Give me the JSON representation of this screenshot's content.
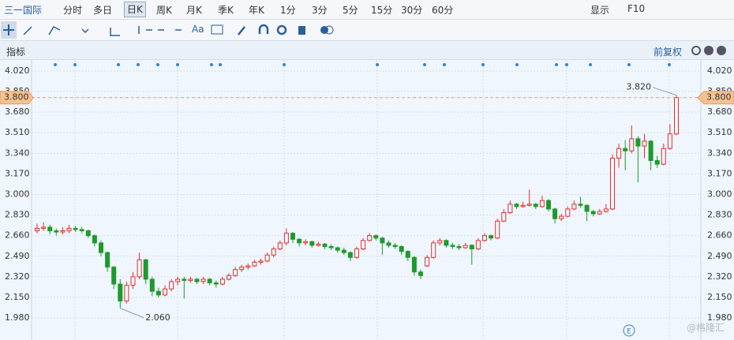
{
  "toolbar": {
    "tabs": [
      "三一国际",
      "分时",
      "多日",
      "日K",
      "周K",
      "月K",
      "季K",
      "年K",
      "1分",
      "3分",
      "5分",
      "15分",
      "30分",
      "60分"
    ],
    "right": [
      "显示",
      "F10"
    ],
    "font_button": "Aa"
  },
  "indicator_bar": {
    "label": "指标",
    "adjust": "前复权"
  },
  "watermark": "@格隆汇",
  "event_marker": "E",
  "chart_data": {
    "type": "candlestick",
    "up_color": "#e0302f",
    "down_color": "#1d9a2e",
    "grid": true,
    "ylim": [
      1.837,
      4.085
    ],
    "yticks": [
      {
        "value": 1.98,
        "label": "1.980"
      },
      {
        "value": 2.15,
        "label": "2.150"
      },
      {
        "value": 2.32,
        "label": "2.320"
      },
      {
        "value": 2.49,
        "label": "2.490"
      },
      {
        "value": 2.66,
        "label": "2.660"
      },
      {
        "value": 2.83,
        "label": "2.830"
      },
      {
        "value": 3.0,
        "label": "3.000"
      },
      {
        "value": 3.17,
        "label": "3.170"
      },
      {
        "value": 3.34,
        "label": "3.340"
      },
      {
        "value": 3.51,
        "label": "3.510"
      },
      {
        "value": 3.68,
        "label": "3.680"
      },
      {
        "value": 3.85,
        "label": "3.850"
      },
      {
        "value": 4.02,
        "label": "4.020"
      }
    ],
    "last_price": {
      "value": 3.8,
      "label": "3.800"
    },
    "high_label": {
      "value": 3.82,
      "label": "3.820"
    },
    "low_label": {
      "value": 2.06,
      "label": "2.060"
    },
    "candles": [
      [
        2.7,
        2.76,
        2.68,
        2.72
      ],
      [
        2.72,
        2.77,
        2.7,
        2.73
      ],
      [
        2.73,
        2.75,
        2.67,
        2.7
      ],
      [
        2.7,
        2.72,
        2.66,
        2.69
      ],
      [
        2.69,
        2.73,
        2.67,
        2.7
      ],
      [
        2.7,
        2.75,
        2.68,
        2.72
      ],
      [
        2.72,
        2.74,
        2.69,
        2.71
      ],
      [
        2.71,
        2.73,
        2.68,
        2.7
      ],
      [
        2.7,
        2.71,
        2.64,
        2.66
      ],
      [
        2.66,
        2.67,
        2.57,
        2.6
      ],
      [
        2.6,
        2.62,
        2.49,
        2.52
      ],
      [
        2.52,
        2.53,
        2.36,
        2.4
      ],
      [
        2.4,
        2.41,
        2.22,
        2.26
      ],
      [
        2.26,
        2.3,
        2.06,
        2.12
      ],
      [
        2.12,
        2.28,
        2.1,
        2.25
      ],
      [
        2.25,
        2.36,
        2.22,
        2.32
      ],
      [
        2.32,
        2.52,
        2.3,
        2.46
      ],
      [
        2.46,
        2.47,
        2.26,
        2.3
      ],
      [
        2.3,
        2.32,
        2.16,
        2.2
      ],
      [
        2.2,
        2.23,
        2.15,
        2.17
      ],
      [
        2.17,
        2.25,
        2.16,
        2.22
      ],
      [
        2.22,
        2.3,
        2.2,
        2.28
      ],
      [
        2.28,
        2.32,
        2.25,
        2.3
      ],
      [
        2.3,
        2.32,
        2.14,
        2.29
      ],
      [
        2.29,
        2.32,
        2.27,
        2.3
      ],
      [
        2.3,
        2.31,
        2.26,
        2.28
      ],
      [
        2.28,
        2.32,
        2.26,
        2.3
      ],
      [
        2.3,
        2.31,
        2.25,
        2.27
      ],
      [
        2.27,
        2.29,
        2.23,
        2.26
      ],
      [
        2.26,
        2.32,
        2.25,
        2.3
      ],
      [
        2.3,
        2.35,
        2.29,
        2.33
      ],
      [
        2.33,
        2.4,
        2.32,
        2.38
      ],
      [
        2.38,
        2.42,
        2.36,
        2.4
      ],
      [
        2.4,
        2.43,
        2.38,
        2.41
      ],
      [
        2.41,
        2.46,
        2.4,
        2.44
      ],
      [
        2.44,
        2.47,
        2.42,
        2.45
      ],
      [
        2.45,
        2.52,
        2.44,
        2.5
      ],
      [
        2.5,
        2.57,
        2.48,
        2.55
      ],
      [
        2.55,
        2.62,
        2.54,
        2.6
      ],
      [
        2.6,
        2.72,
        2.58,
        2.68
      ],
      [
        2.68,
        2.69,
        2.6,
        2.63
      ],
      [
        2.63,
        2.64,
        2.57,
        2.6
      ],
      [
        2.6,
        2.63,
        2.58,
        2.61
      ],
      [
        2.61,
        2.62,
        2.56,
        2.58
      ],
      [
        2.58,
        2.61,
        2.57,
        2.59
      ],
      [
        2.59,
        2.6,
        2.55,
        2.57
      ],
      [
        2.57,
        2.59,
        2.54,
        2.56
      ],
      [
        2.56,
        2.57,
        2.52,
        2.54
      ],
      [
        2.54,
        2.56,
        2.5,
        2.52
      ],
      [
        2.52,
        2.53,
        2.45,
        2.48
      ],
      [
        2.48,
        2.57,
        2.47,
        2.55
      ],
      [
        2.55,
        2.64,
        2.54,
        2.62
      ],
      [
        2.62,
        2.68,
        2.61,
        2.66
      ],
      [
        2.66,
        2.67,
        2.62,
        2.64
      ],
      [
        2.64,
        2.65,
        2.5,
        2.6
      ],
      [
        2.6,
        2.62,
        2.56,
        2.58
      ],
      [
        2.58,
        2.6,
        2.55,
        2.57
      ],
      [
        2.57,
        2.58,
        2.5,
        2.53
      ],
      [
        2.53,
        2.54,
        2.45,
        2.48
      ],
      [
        2.48,
        2.49,
        2.33,
        2.36
      ],
      [
        2.36,
        2.38,
        2.3,
        2.33
      ],
      [
        2.41,
        2.5,
        2.4,
        2.48
      ],
      [
        2.48,
        2.62,
        2.47,
        2.6
      ],
      [
        2.6,
        2.64,
        2.58,
        2.62
      ],
      [
        2.62,
        2.63,
        2.56,
        2.58
      ],
      [
        2.58,
        2.6,
        2.55,
        2.57
      ],
      [
        2.57,
        2.59,
        2.54,
        2.56
      ],
      [
        2.56,
        2.6,
        2.55,
        2.58
      ],
      [
        2.58,
        2.59,
        2.42,
        2.55
      ],
      [
        2.55,
        2.64,
        2.54,
        2.62
      ],
      [
        2.62,
        2.68,
        2.61,
        2.66
      ],
      [
        2.66,
        2.67,
        2.62,
        2.64
      ],
      [
        2.64,
        2.8,
        2.63,
        2.78
      ],
      [
        2.78,
        2.88,
        2.77,
        2.85
      ],
      [
        2.85,
        2.95,
        2.84,
        2.92
      ],
      [
        2.92,
        2.93,
        2.88,
        2.9
      ],
      [
        2.9,
        2.94,
        2.89,
        2.91
      ],
      [
        2.91,
        3.04,
        2.9,
        2.92
      ],
      [
        2.92,
        2.93,
        2.88,
        2.9
      ],
      [
        2.9,
        2.99,
        2.89,
        2.95
      ],
      [
        2.95,
        2.96,
        2.86,
        2.88
      ],
      [
        2.88,
        2.89,
        2.76,
        2.8
      ],
      [
        2.8,
        2.84,
        2.78,
        2.82
      ],
      [
        2.82,
        2.9,
        2.81,
        2.88
      ],
      [
        2.88,
        2.95,
        2.87,
        2.92
      ],
      [
        2.92,
        2.98,
        2.89,
        2.91
      ],
      [
        2.91,
        2.92,
        2.78,
        2.86
      ],
      [
        2.86,
        2.87,
        2.82,
        2.84
      ],
      [
        2.84,
        2.88,
        2.83,
        2.86
      ],
      [
        2.86,
        2.92,
        2.85,
        2.88
      ],
      [
        2.88,
        3.33,
        2.87,
        3.3
      ],
      [
        3.3,
        3.42,
        3.22,
        3.38
      ],
      [
        3.38,
        3.45,
        3.2,
        3.36
      ],
      [
        3.36,
        3.57,
        3.34,
        3.46
      ],
      [
        3.46,
        3.48,
        3.1,
        3.4
      ],
      [
        3.4,
        3.5,
        3.3,
        3.44
      ],
      [
        3.44,
        3.45,
        3.2,
        3.28
      ],
      [
        3.28,
        3.32,
        3.22,
        3.25
      ],
      [
        3.25,
        3.42,
        3.24,
        3.38
      ],
      [
        3.38,
        3.58,
        3.37,
        3.5
      ],
      [
        3.5,
        3.82,
        3.49,
        3.8
      ]
    ]
  }
}
